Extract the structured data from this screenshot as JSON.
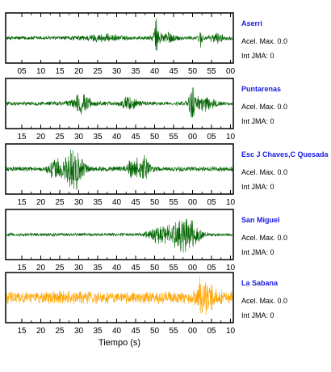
{
  "chart_data": {
    "type": "line",
    "title": "",
    "xlabel": "Tiempo (s)",
    "ylabel": "",
    "grid": false,
    "acel_label": "Acel. Max.",
    "int_label": "Int JMA:",
    "panels": [
      {
        "station": "Aserri",
        "acel_max": "0.0",
        "int_jma": "0",
        "color": "#006400",
        "tick_labels": [
          "05",
          "10",
          "15",
          "20",
          "25",
          "30",
          "35",
          "40",
          "45",
          "50",
          "55",
          "00"
        ],
        "ticks_on_top": true,
        "base_amplitude": 0.1,
        "bursts": [
          {
            "center": 0.66,
            "width": 0.008,
            "amplitude": 0.85
          },
          {
            "center": 0.7,
            "width": 0.04,
            "amplitude": 0.28
          },
          {
            "center": 0.42,
            "width": 0.08,
            "amplitude": 0.12
          },
          {
            "center": 0.86,
            "width": 0.01,
            "amplitude": 0.35
          },
          {
            "center": 0.93,
            "width": 0.025,
            "amplitude": 0.2
          }
        ]
      },
      {
        "station": "Puntarenas",
        "acel_max": "0.0",
        "int_jma": "0",
        "color": "#006400",
        "tick_labels": [
          "15",
          "20",
          "25",
          "30",
          "35",
          "40",
          "45",
          "50",
          "55",
          "00",
          "05",
          "10"
        ],
        "ticks_on_top": false,
        "base_amplitude": 0.1,
        "bursts": [
          {
            "center": 0.33,
            "width": 0.04,
            "amplitude": 0.4
          },
          {
            "center": 0.55,
            "width": 0.035,
            "amplitude": 0.32
          },
          {
            "center": 0.82,
            "width": 0.01,
            "amplitude": 0.9
          },
          {
            "center": 0.87,
            "width": 0.05,
            "amplitude": 0.3
          }
        ]
      },
      {
        "station": "Esc J Chaves,C Quesada",
        "acel_max": "0.0",
        "int_jma": "0",
        "color": "#006400",
        "tick_labels": [
          "15",
          "20",
          "25",
          "30",
          "35",
          "40",
          "45",
          "50",
          "55",
          "00",
          "05",
          "10"
        ],
        "ticks_on_top": false,
        "base_amplitude": 0.12,
        "bursts": [
          {
            "center": 0.3,
            "width": 0.04,
            "amplitude": 0.95
          },
          {
            "center": 0.22,
            "width": 0.03,
            "amplitude": 0.5
          },
          {
            "center": 0.6,
            "width": 0.03,
            "amplitude": 0.6
          },
          {
            "center": 0.55,
            "width": 0.02,
            "amplitude": 0.3
          }
        ]
      },
      {
        "station": "San Miguel",
        "acel_max": "0.0",
        "int_jma": "0",
        "color": "#006400",
        "tick_labels": [
          "15",
          "20",
          "25",
          "30",
          "35",
          "40",
          "45",
          "50",
          "55",
          "00",
          "05",
          "10"
        ],
        "ticks_on_top": false,
        "base_amplitude": 0.08,
        "bursts": [
          {
            "center": 0.79,
            "width": 0.055,
            "amplitude": 0.95
          },
          {
            "center": 0.68,
            "width": 0.05,
            "amplitude": 0.4
          }
        ]
      },
      {
        "station": "La Sabana",
        "acel_max": "0.0",
        "int_jma": "0",
        "color": "#ffa500",
        "tick_labels": [
          "15",
          "20",
          "25",
          "30",
          "35",
          "40",
          "45",
          "50",
          "55",
          "00",
          "05",
          "10"
        ],
        "ticks_on_top": false,
        "base_amplitude": 0.3,
        "bursts": [
          {
            "center": 0.86,
            "width": 0.008,
            "amplitude": 0.95
          },
          {
            "center": 0.89,
            "width": 0.04,
            "amplitude": 0.45
          }
        ]
      }
    ]
  }
}
